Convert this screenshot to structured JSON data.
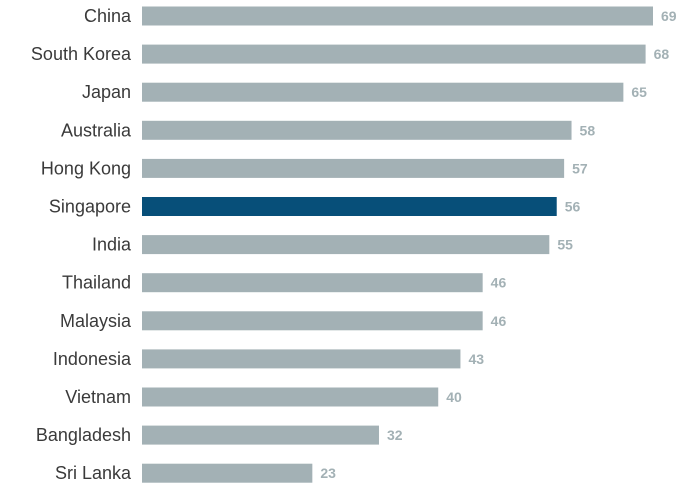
{
  "chart_data": {
    "type": "bar",
    "orientation": "horizontal",
    "categories": [
      "China",
      "South Korea",
      "Japan",
      "Australia",
      "Hong Kong",
      "Singapore",
      "India",
      "Thailand",
      "Malaysia",
      "Indonesia",
      "Vietnam",
      "Bangladesh",
      "Sri Lanka"
    ],
    "values": [
      69,
      68,
      65,
      58,
      57,
      56,
      55,
      46,
      46,
      43,
      40,
      32,
      23
    ],
    "highlight": "Singapore",
    "title": "",
    "xlabel": "",
    "ylabel": "",
    "xlim": [
      0,
      70
    ],
    "grid": false,
    "legend": false,
    "colors": {
      "bar": "#a3b1b5",
      "highlight": "#074f79",
      "value_label": "#a3b1b5"
    }
  }
}
